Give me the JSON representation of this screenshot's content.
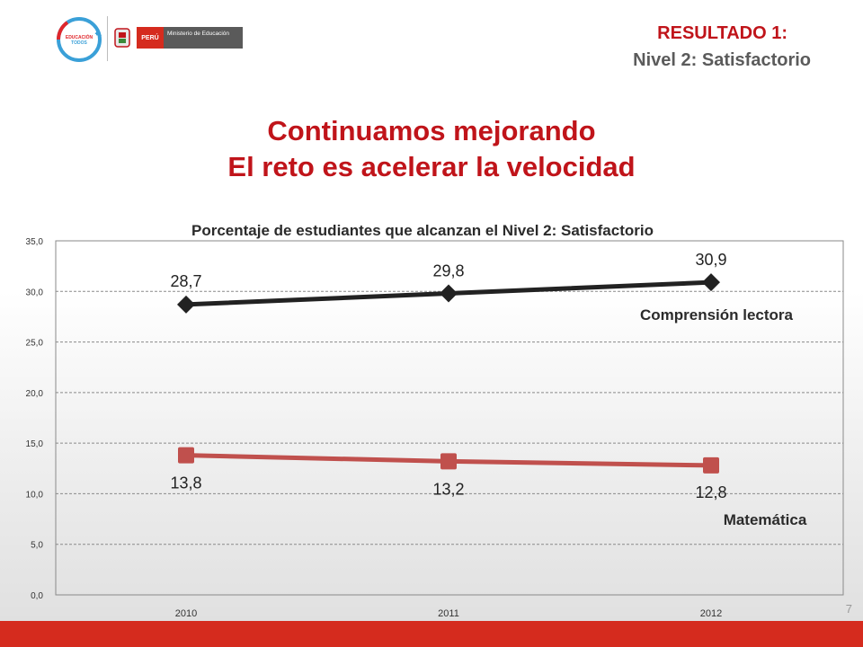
{
  "header": {
    "result_title": "RESULTADO 1:",
    "result_subtitle": "Nivel 2: Satisfactorio",
    "logo": {
      "campaign_text": "cambiemos la EDUCACIÓN cambiemos TODOS",
      "country": "PERÚ",
      "ministry": "Ministerio de Educación"
    }
  },
  "headline": {
    "line1": "Continuamos  mejorando",
    "line2": "El reto es acelerar la velocidad"
  },
  "chart_data": {
    "type": "line",
    "title": "Porcentaje de estudiantes que alcanzan el Nivel 2: Satisfactorio",
    "categories": [
      "2010",
      "2011",
      "2012"
    ],
    "ylim": [
      0,
      35
    ],
    "yticks": [
      "0,0",
      "5,0",
      "10,0",
      "15,0",
      "20,0",
      "25,0",
      "30,0",
      "35,0"
    ],
    "grid": true,
    "series": [
      {
        "name": "Comprensión lectora",
        "values": [
          28.7,
          29.8,
          30.9
        ],
        "labels": [
          "28,7",
          "29,8",
          "30,9"
        ],
        "color": "#222222",
        "marker": "diamond"
      },
      {
        "name": "Matemática",
        "values": [
          13.8,
          13.2,
          12.8
        ],
        "labels": [
          "13,8",
          "13,2",
          "12,8"
        ],
        "color": "#c0504d",
        "marker": "square"
      }
    ]
  },
  "footer": {
    "page_number": "7",
    "bar_color": "#d52b1e"
  }
}
